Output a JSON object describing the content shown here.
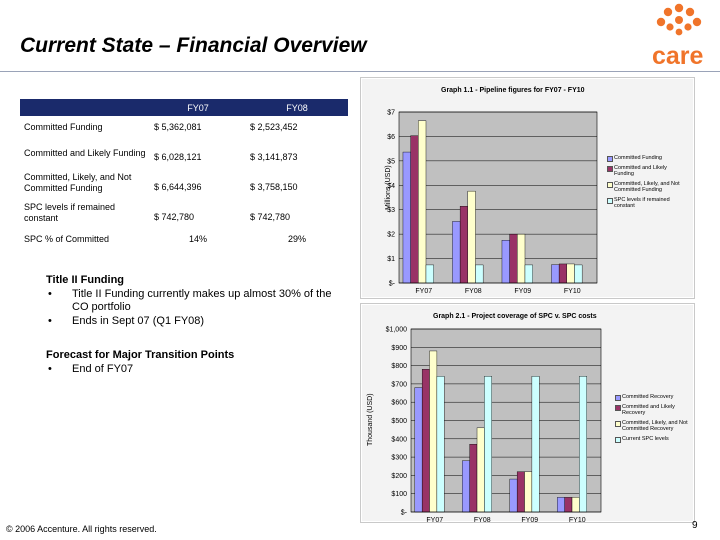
{
  "page": {
    "title": "Current State – Financial Overview",
    "footer": "© 2006 Accenture. All rights reserved.",
    "page_number": "9"
  },
  "logo": {
    "text": "care",
    "color": "#f0742a"
  },
  "table": {
    "headers": [
      "",
      "FY07",
      "FY08"
    ],
    "rows": [
      {
        "label": "Committed Funding",
        "fy07": "$ 5,362,081",
        "fy08": "$ 2,523,452"
      },
      {
        "label": "Committed and Likely Funding",
        "fy07": "$ 6,028,121",
        "fy08": "$ 3,141,873"
      },
      {
        "label": "Committed, Likely, and Not Committed Funding",
        "fy07": "$ 6,644,396",
        "fy08": "$ 3,758,150"
      },
      {
        "label": "SPC levels if remained constant",
        "fy07": "$   742,780",
        "fy08": "$   742,780"
      },
      {
        "label": "SPC % of Committed",
        "fy07": "14%",
        "fy08": "29%"
      }
    ]
  },
  "notes": {
    "title_ii_heading": "Title II Funding",
    "title_ii_bullets": [
      "Title II Funding currently makes up almost 30% of the CO portfolio",
      "Ends in Sept 07 (Q1 FY08)"
    ],
    "forecast_heading": "Forecast for Major Transition Points",
    "forecast_bullets": [
      "End of FY07"
    ],
    "bullet_symbol": "•"
  },
  "chart_data": [
    {
      "type": "bar",
      "title": "Graph 1.1 - Pipeline figures for FY07 - FY10",
      "ylabel": "Millions (USD)",
      "xlabel": "",
      "categories": [
        "FY07",
        "FY08",
        "FY09",
        "FY10"
      ],
      "ylim": [
        0,
        7
      ],
      "yticks": [
        0,
        1,
        2,
        3,
        4,
        5,
        6,
        7
      ],
      "ytick_labels": [
        "$-",
        "$1",
        "$2",
        "$3",
        "$4",
        "$5",
        "$6",
        "$7"
      ],
      "series": [
        {
          "name": "Committed Funding",
          "color": "#9999ff",
          "values": [
            5.36,
            2.52,
            1.75,
            0.75
          ]
        },
        {
          "name": "Committed and Likely Funding",
          "color": "#993366",
          "values": [
            6.03,
            3.14,
            2.0,
            0.78
          ]
        },
        {
          "name": "Committed, Likely, and Not Committed Funding",
          "color": "#ffffcc",
          "values": [
            6.64,
            3.76,
            2.0,
            0.78
          ]
        },
        {
          "name": "SPC levels if remained constant",
          "color": "#ccffff",
          "values": [
            0.74,
            0.74,
            0.74,
            0.74
          ]
        }
      ],
      "legend": "right"
    },
    {
      "type": "bar",
      "title": "Graph 2.1 - Project coverage of SPC v. SPC costs",
      "ylabel": "Thousand (USD)",
      "xlabel": "",
      "categories": [
        "FY07",
        "FY08",
        "FY09",
        "FY10"
      ],
      "ylim": [
        0,
        1000
      ],
      "yticks": [
        0,
        100,
        200,
        300,
        400,
        500,
        600,
        700,
        800,
        900,
        1000
      ],
      "ytick_labels": [
        "$-",
        "$100",
        "$200",
        "$300",
        "$400",
        "$500",
        "$600",
        "$700",
        "$800",
        "$900",
        "$1,000"
      ],
      "series": [
        {
          "name": "Committed Recovery",
          "color": "#9999ff",
          "values": [
            680,
            280,
            180,
            80
          ]
        },
        {
          "name": "Committed and Likely Recovery",
          "color": "#993366",
          "values": [
            780,
            370,
            220,
            80
          ]
        },
        {
          "name": "Committed, Likely, and Not Committed Recovery",
          "color": "#ffffcc",
          "values": [
            880,
            460,
            220,
            80
          ]
        },
        {
          "name": "Current SPC levels",
          "color": "#ccffff",
          "values": [
            742,
            742,
            742,
            742
          ]
        }
      ],
      "legend": "right"
    }
  ]
}
